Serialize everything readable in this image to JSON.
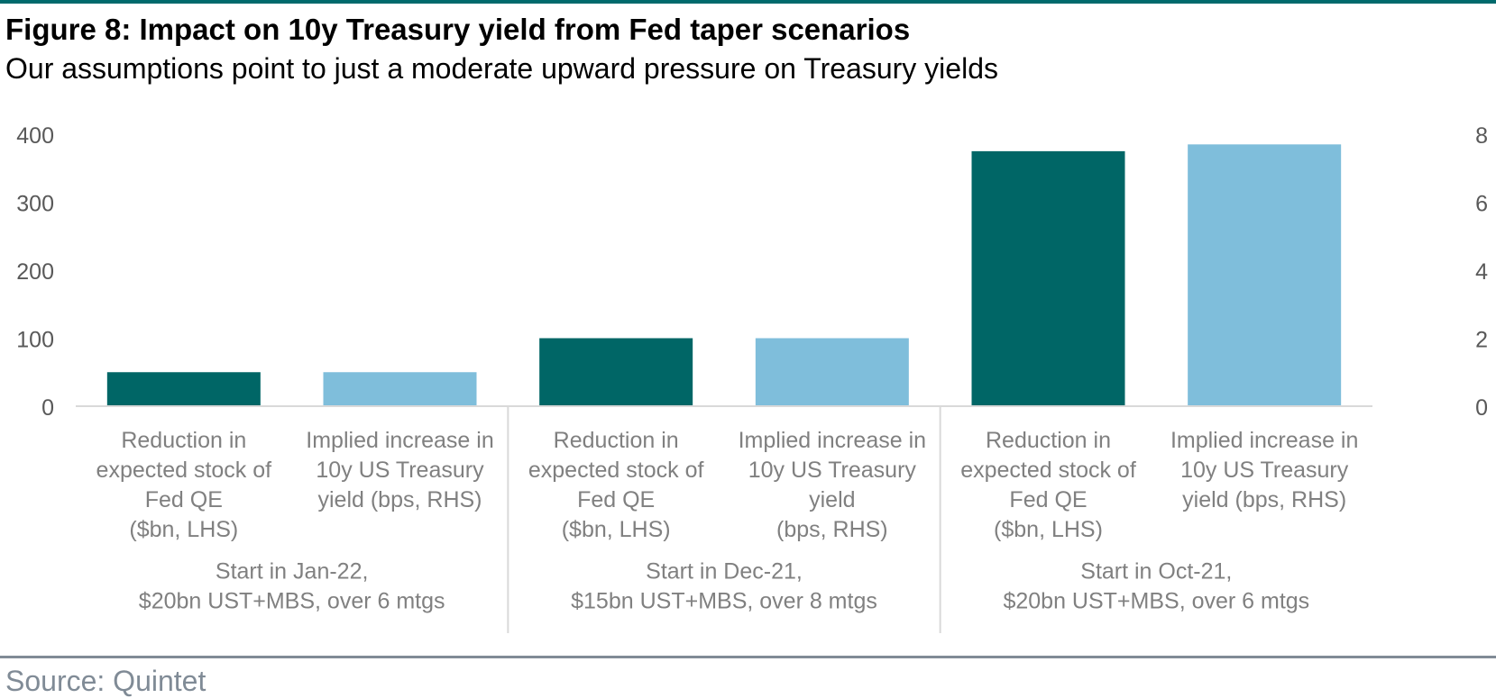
{
  "figure": {
    "title": "Figure 8: Impact on 10y Treasury yield from Fed taper scenarios",
    "subtitle": "Our assumptions point to just a moderate upward pressure on Treasury yields",
    "source": "Source: Quintet"
  },
  "colors": {
    "brand": "#006a6c",
    "qe_bar": "#006666",
    "yield_bar": "#7fbedb",
    "axis_text": "#595959",
    "category_text": "#808080",
    "source_text": "#808b96"
  },
  "chart_data": {
    "type": "bar",
    "title": "Figure 8: Impact on 10y Treasury yield from Fed taper scenarios",
    "left_axis": {
      "ylim": [
        0,
        400
      ],
      "ticks": [
        "0",
        "100",
        "200",
        "300",
        "400"
      ]
    },
    "right_axis": {
      "ylim": [
        0,
        8
      ],
      "ticks": [
        "0",
        "2",
        "4",
        "6",
        "8"
      ]
    },
    "grid": false,
    "groups": [
      {
        "label_lines": [
          "Start in Jan-22,",
          "$20bn UST+MBS, over 6 mtgs"
        ],
        "bars": [
          {
            "axis": "left",
            "value": 50,
            "label_lines": [
              "Reduction in",
              "expected stock of",
              "Fed QE",
              "($bn, LHS)"
            ]
          },
          {
            "axis": "right",
            "value": 1.0,
            "label_lines": [
              "Implied increase in",
              "10y US Treasury",
              "yield (bps, RHS)"
            ]
          }
        ]
      },
      {
        "label_lines": [
          "Start in Dec-21,",
          "$15bn UST+MBS, over 8 mtgs"
        ],
        "bars": [
          {
            "axis": "left",
            "value": 100,
            "label_lines": [
              "Reduction in",
              "expected stock of",
              "Fed QE",
              "($bn, LHS)"
            ]
          },
          {
            "axis": "right",
            "value": 2.0,
            "label_lines": [
              "Implied increase in",
              "10y US Treasury",
              "yield",
              "(bps, RHS)"
            ]
          }
        ]
      },
      {
        "label_lines": [
          "Start in Oct-21,",
          "$20bn UST+MBS, over 6 mtgs"
        ],
        "bars": [
          {
            "axis": "left",
            "value": 375,
            "label_lines": [
              "Reduction in",
              "expected stock of",
              "Fed QE",
              "($bn, LHS)"
            ]
          },
          {
            "axis": "right",
            "value": 7.7,
            "label_lines": [
              "Implied increase in",
              "10y US Treasury",
              "yield (bps, RHS)"
            ]
          }
        ]
      }
    ]
  }
}
